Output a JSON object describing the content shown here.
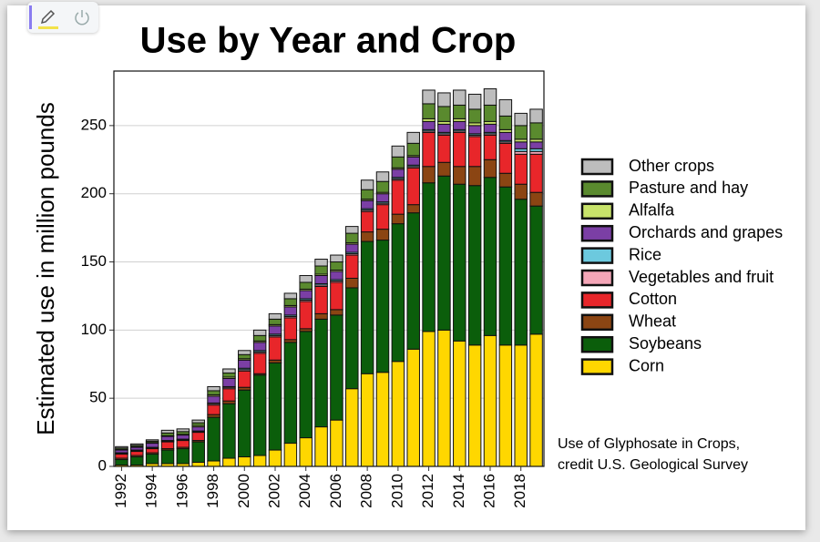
{
  "chart_data": {
    "type": "bar",
    "stacked": true,
    "title": "Use by Year and Crop",
    "y_label": "Estimated use in million pounds",
    "caption": [
      "Use of Glyphosate in Crops,",
      "credit U.S. Geological Survey"
    ],
    "categories": [
      "1992",
      null,
      "1994",
      null,
      "1996",
      null,
      "1998",
      null,
      "2000",
      null,
      "2002",
      null,
      "2004",
      null,
      "2006",
      null,
      "2008",
      null,
      "2010",
      null,
      "2012",
      null,
      "2014",
      null,
      "2016",
      null,
      "2018",
      null
    ],
    "ylim": [
      0,
      290
    ],
    "yticks": [
      0,
      50,
      100,
      150,
      200,
      250
    ],
    "grid": true,
    "series": [
      {
        "name": "Corn",
        "color": "#ffd700",
        "values": [
          1,
          1,
          2,
          2,
          2,
          3,
          4,
          6,
          7,
          8,
          12,
          17,
          21,
          29,
          34,
          57,
          68,
          69,
          77,
          86,
          99,
          100,
          92,
          89,
          96,
          89,
          89,
          97
        ]
      },
      {
        "name": "Soybeans",
        "color": "#0b5e0b",
        "values": [
          4,
          6,
          7,
          10,
          11,
          15,
          32,
          40,
          49,
          59,
          64,
          74,
          78,
          79,
          77,
          74,
          97,
          97,
          101,
          100,
          109,
          113,
          115,
          117,
          116,
          116,
          107,
          94
        ]
      },
      {
        "name": "Wheat",
        "color": "#8b4513",
        "values": [
          1,
          1,
          1,
          1,
          1,
          1,
          2,
          2,
          2,
          1,
          2,
          2,
          2,
          4,
          4,
          7,
          7,
          8,
          7,
          6,
          12,
          10,
          13,
          14,
          13,
          10,
          11,
          10
        ]
      },
      {
        "name": "Cotton",
        "color": "#e8262a",
        "values": [
          3,
          3,
          3,
          5,
          5,
          6,
          7,
          9,
          12,
          15,
          17,
          16,
          20,
          20,
          20,
          17,
          15,
          18,
          25,
          27,
          25,
          20,
          25,
          22,
          18,
          22,
          22,
          28
        ]
      },
      {
        "name": "Vegetables and fruit",
        "color": "#f4a6b7",
        "values": [
          0.5,
          0.5,
          0.5,
          0.5,
          0.5,
          0.5,
          1,
          1,
          1,
          1,
          1,
          1,
          1,
          1,
          1,
          1,
          1,
          1,
          1,
          1,
          1,
          1,
          1,
          1,
          1,
          1,
          2,
          2
        ]
      },
      {
        "name": "Rice",
        "color": "#6cc9de",
        "values": [
          0.5,
          0.5,
          0.5,
          0.5,
          0.5,
          0.5,
          0.5,
          0.5,
          1,
          1,
          1,
          1,
          1,
          1,
          1,
          1,
          1,
          1,
          1,
          1,
          1,
          1,
          1,
          1,
          1,
          1,
          2,
          2
        ]
      },
      {
        "name": "Orchards and grapes",
        "color": "#7b3fa5",
        "values": [
          2,
          2,
          3,
          3,
          3,
          3,
          5,
          6,
          6,
          6,
          6,
          6,
          6,
          6,
          6,
          6,
          6,
          6,
          6,
          6,
          6,
          6,
          6,
          6,
          6,
          6,
          5,
          5
        ]
      },
      {
        "name": "Alfalfa",
        "color": "#c8e36a",
        "values": [
          0.5,
          0.5,
          0.5,
          0.5,
          0.5,
          1,
          1,
          1,
          1,
          1,
          1,
          1,
          1,
          1,
          1,
          1,
          1,
          1,
          1,
          1,
          2,
          2,
          2,
          2,
          2,
          2,
          2,
          2
        ]
      },
      {
        "name": "Pasture and hay",
        "color": "#5a8a2e",
        "values": [
          1,
          1,
          1,
          2,
          2,
          2,
          3,
          3,
          3,
          4,
          4,
          5,
          5,
          6,
          6,
          7,
          7,
          8,
          8,
          9,
          11,
          11,
          10,
          10,
          12,
          10,
          10,
          12
        ]
      },
      {
        "name": "Other crops",
        "color": "#bdbdbd",
        "values": [
          1,
          1,
          1,
          2,
          2,
          2,
          3,
          3,
          3,
          4,
          4,
          4,
          5,
          5,
          5,
          5,
          7,
          7,
          8,
          8,
          10,
          10,
          11,
          11,
          12,
          12,
          9,
          10
        ]
      }
    ]
  }
}
